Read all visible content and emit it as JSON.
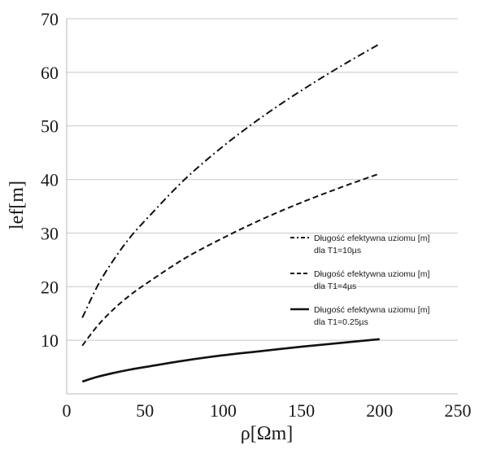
{
  "chart_data": {
    "type": "line",
    "title": "",
    "xlabel": "ρ[Ωm]",
    "ylabel": "lef[m]",
    "xlim": [
      0,
      250
    ],
    "ylim": [
      0,
      70
    ],
    "xticks": [
      0,
      50,
      100,
      150,
      200,
      250
    ],
    "yticks": [
      10,
      20,
      30,
      40,
      50,
      60,
      70
    ],
    "grid": "horizontal",
    "legend_position": "right",
    "series": [
      {
        "name": "Długość efektywna uziomu [m]",
        "name_line2": "dla T1=10µs",
        "dash": "dash-dot",
        "color": "#111111",
        "x": [
          10,
          20,
          30,
          40,
          50,
          75,
          100,
          125,
          150,
          175,
          200
        ],
        "y": [
          14.2,
          20.3,
          25,
          29,
          32.3,
          39.9,
          46.2,
          51.7,
          56.6,
          61.1,
          65.3
        ]
      },
      {
        "name": "Długość efektywna uziomu [m]",
        "name_line2": "dla T1=4µs",
        "dash": "dashed",
        "color": "#111111",
        "x": [
          10,
          20,
          30,
          40,
          50,
          75,
          100,
          125,
          150,
          175,
          200
        ],
        "y": [
          9,
          12.8,
          15.8,
          18.3,
          20.4,
          25.2,
          29.1,
          32.6,
          35.7,
          38.5,
          41.1
        ]
      },
      {
        "name": "Długość efektywna uziomu [m]",
        "name_line2": "dla T1=0.25µs",
        "dash": "solid",
        "color": "#111111",
        "x": [
          10,
          20,
          30,
          40,
          50,
          75,
          100,
          125,
          150,
          175,
          200
        ],
        "y": [
          2.3,
          3.2,
          3.9,
          4.5,
          5.0,
          6.2,
          7.2,
          8.0,
          8.8,
          9.5,
          10.2
        ]
      }
    ]
  }
}
